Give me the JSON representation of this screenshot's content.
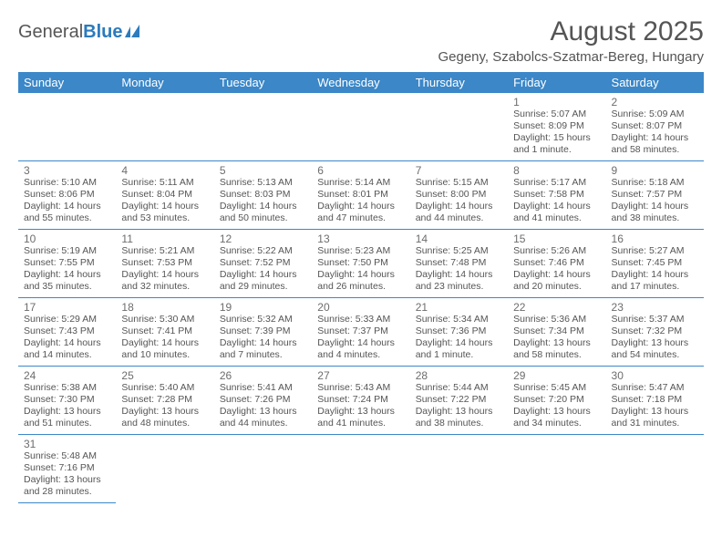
{
  "logo": {
    "text1": "General",
    "text2": "Blue"
  },
  "title": "August 2025",
  "location": "Gegeny, Szabolcs-Szatmar-Bereg, Hungary",
  "colors": {
    "header_bg": "#3b87c8",
    "header_text": "#ffffff",
    "text": "#555555",
    "daynum": "#6d6d6d",
    "border": "#3b87c8"
  },
  "dayNames": [
    "Sunday",
    "Monday",
    "Tuesday",
    "Wednesday",
    "Thursday",
    "Friday",
    "Saturday"
  ],
  "weeks": [
    [
      null,
      null,
      null,
      null,
      null,
      {
        "n": "1",
        "sr": "5:07 AM",
        "ss": "8:09 PM",
        "dl": "15 hours and 1 minute."
      },
      {
        "n": "2",
        "sr": "5:09 AM",
        "ss": "8:07 PM",
        "dl": "14 hours and 58 minutes."
      }
    ],
    [
      {
        "n": "3",
        "sr": "5:10 AM",
        "ss": "8:06 PM",
        "dl": "14 hours and 55 minutes."
      },
      {
        "n": "4",
        "sr": "5:11 AM",
        "ss": "8:04 PM",
        "dl": "14 hours and 53 minutes."
      },
      {
        "n": "5",
        "sr": "5:13 AM",
        "ss": "8:03 PM",
        "dl": "14 hours and 50 minutes."
      },
      {
        "n": "6",
        "sr": "5:14 AM",
        "ss": "8:01 PM",
        "dl": "14 hours and 47 minutes."
      },
      {
        "n": "7",
        "sr": "5:15 AM",
        "ss": "8:00 PM",
        "dl": "14 hours and 44 minutes."
      },
      {
        "n": "8",
        "sr": "5:17 AM",
        "ss": "7:58 PM",
        "dl": "14 hours and 41 minutes."
      },
      {
        "n": "9",
        "sr": "5:18 AM",
        "ss": "7:57 PM",
        "dl": "14 hours and 38 minutes."
      }
    ],
    [
      {
        "n": "10",
        "sr": "5:19 AM",
        "ss": "7:55 PM",
        "dl": "14 hours and 35 minutes."
      },
      {
        "n": "11",
        "sr": "5:21 AM",
        "ss": "7:53 PM",
        "dl": "14 hours and 32 minutes."
      },
      {
        "n": "12",
        "sr": "5:22 AM",
        "ss": "7:52 PM",
        "dl": "14 hours and 29 minutes."
      },
      {
        "n": "13",
        "sr": "5:23 AM",
        "ss": "7:50 PM",
        "dl": "14 hours and 26 minutes."
      },
      {
        "n": "14",
        "sr": "5:25 AM",
        "ss": "7:48 PM",
        "dl": "14 hours and 23 minutes."
      },
      {
        "n": "15",
        "sr": "5:26 AM",
        "ss": "7:46 PM",
        "dl": "14 hours and 20 minutes."
      },
      {
        "n": "16",
        "sr": "5:27 AM",
        "ss": "7:45 PM",
        "dl": "14 hours and 17 minutes."
      }
    ],
    [
      {
        "n": "17",
        "sr": "5:29 AM",
        "ss": "7:43 PM",
        "dl": "14 hours and 14 minutes."
      },
      {
        "n": "18",
        "sr": "5:30 AM",
        "ss": "7:41 PM",
        "dl": "14 hours and 10 minutes."
      },
      {
        "n": "19",
        "sr": "5:32 AM",
        "ss": "7:39 PM",
        "dl": "14 hours and 7 minutes."
      },
      {
        "n": "20",
        "sr": "5:33 AM",
        "ss": "7:37 PM",
        "dl": "14 hours and 4 minutes."
      },
      {
        "n": "21",
        "sr": "5:34 AM",
        "ss": "7:36 PM",
        "dl": "14 hours and 1 minute."
      },
      {
        "n": "22",
        "sr": "5:36 AM",
        "ss": "7:34 PM",
        "dl": "13 hours and 58 minutes."
      },
      {
        "n": "23",
        "sr": "5:37 AM",
        "ss": "7:32 PM",
        "dl": "13 hours and 54 minutes."
      }
    ],
    [
      {
        "n": "24",
        "sr": "5:38 AM",
        "ss": "7:30 PM",
        "dl": "13 hours and 51 minutes."
      },
      {
        "n": "25",
        "sr": "5:40 AM",
        "ss": "7:28 PM",
        "dl": "13 hours and 48 minutes."
      },
      {
        "n": "26",
        "sr": "5:41 AM",
        "ss": "7:26 PM",
        "dl": "13 hours and 44 minutes."
      },
      {
        "n": "27",
        "sr": "5:43 AM",
        "ss": "7:24 PM",
        "dl": "13 hours and 41 minutes."
      },
      {
        "n": "28",
        "sr": "5:44 AM",
        "ss": "7:22 PM",
        "dl": "13 hours and 38 minutes."
      },
      {
        "n": "29",
        "sr": "5:45 AM",
        "ss": "7:20 PM",
        "dl": "13 hours and 34 minutes."
      },
      {
        "n": "30",
        "sr": "5:47 AM",
        "ss": "7:18 PM",
        "dl": "13 hours and 31 minutes."
      }
    ],
    [
      {
        "n": "31",
        "sr": "5:48 AM",
        "ss": "7:16 PM",
        "dl": "13 hours and 28 minutes."
      },
      null,
      null,
      null,
      null,
      null,
      null
    ]
  ],
  "labels": {
    "sunrise": "Sunrise:",
    "sunset": "Sunset:",
    "daylight": "Daylight:"
  }
}
